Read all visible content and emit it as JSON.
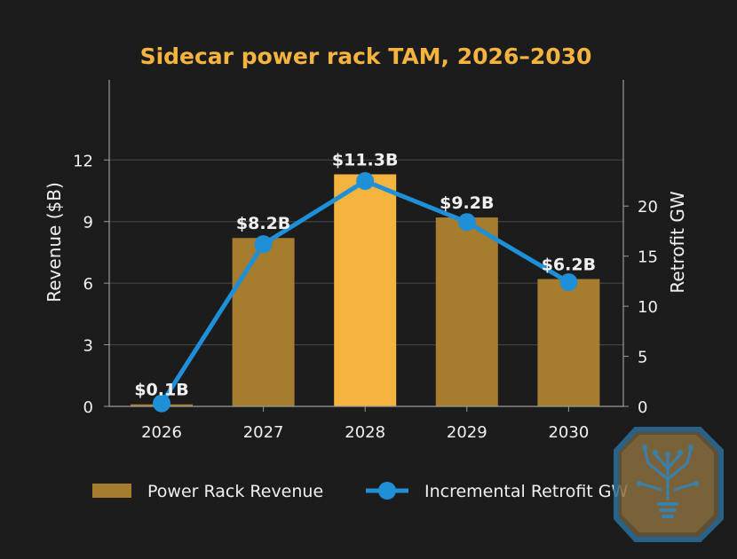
{
  "colors": {
    "background": "#1c1c1c",
    "title": "#f5b340",
    "bar": "#a67c2e",
    "bar_highlight": "#f5b340",
    "line": "#1f8fd8",
    "text": "#f0f0f0",
    "grid": "#4a4a4a",
    "axis": "#9a9a9a"
  },
  "icons": {
    "logo": "tree-circuit-lightbulb-icon"
  },
  "chart_data": {
    "type": "bar",
    "title": "Sidecar power rack TAM, 2026–2030",
    "categories": [
      "2026",
      "2027",
      "2028",
      "2029",
      "2030"
    ],
    "ylabel": "Revenue ($B)",
    "y2label": "Retrofit GW",
    "ylim": [
      0,
      15.9
    ],
    "y2lim": [
      0,
      32.6
    ],
    "yticks": [
      0,
      3,
      6,
      9,
      12
    ],
    "y2ticks": [
      0,
      5,
      10,
      15,
      20
    ],
    "grid": true,
    "legend_position": "bottom",
    "highlight_category": "2028",
    "series": [
      {
        "name": "Power Rack Revenue",
        "type": "bar",
        "axis": "left",
        "values": [
          0.1,
          8.2,
          11.3,
          9.2,
          6.2
        ],
        "labels": [
          "$0.1B",
          "$8.2B",
          "$11.3B",
          "$9.2B",
          "$6.2B"
        ]
      },
      {
        "name": "Incremental Retrofit GW",
        "type": "line",
        "axis": "right",
        "values": [
          0.3,
          16.2,
          22.5,
          18.4,
          12.4
        ]
      }
    ]
  }
}
